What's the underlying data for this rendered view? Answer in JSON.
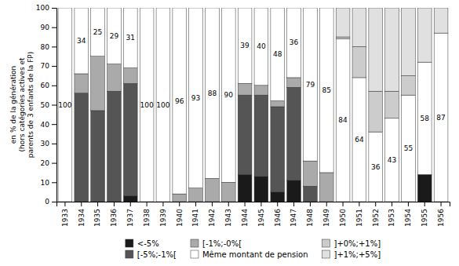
{
  "chart_data": {
    "type": "bar",
    "stacked": true,
    "grid": false,
    "legend": "bottom",
    "categories": [
      "1933",
      "1934",
      "1935",
      "1936",
      "1937",
      "1938",
      "1939",
      "1940",
      "1941",
      "1942",
      "1943",
      "1944",
      "1945",
      "1946",
      "1947",
      "1948",
      "1949",
      "1950",
      "1951",
      "1952",
      "1953",
      "1954",
      "1955",
      "1956"
    ],
    "series": [
      {
        "name": "<-5%",
        "color": "#1a1a1a",
        "values": [
          0,
          0,
          0,
          0,
          3,
          0,
          0,
          0,
          0,
          0,
          0,
          14,
          13,
          5,
          11,
          0,
          0,
          0,
          0,
          0,
          0,
          0,
          14,
          0
        ]
      },
      {
        "name": "[-5%;-1%[",
        "color": "#555555",
        "values": [
          0,
          56,
          47,
          57,
          58,
          0,
          0,
          0,
          0,
          0,
          0,
          41,
          42,
          44,
          48,
          8,
          0,
          0,
          0,
          0,
          0,
          0,
          0,
          0
        ]
      },
      {
        "name": "[-1%;-0%[",
        "color": "#aaaaaa",
        "values": [
          0,
          10,
          28,
          14,
          8,
          0,
          0,
          4,
          7,
          12,
          10,
          6,
          5,
          3,
          5,
          13,
          15,
          0,
          0,
          0,
          0,
          0,
          0,
          0
        ]
      },
      {
        "name": "Même montant de pension",
        "color": "#ffffff",
        "data_labels": true,
        "values": [
          100,
          34,
          25,
          29,
          31,
          100,
          100,
          96,
          93,
          88,
          90,
          39,
          40,
          48,
          36,
          79,
          85,
          84,
          64,
          36,
          43,
          55,
          58,
          87
        ]
      },
      {
        "name": "]+0%;+1%]",
        "color": "#cccccc",
        "values": [
          0,
          0,
          0,
          0,
          0,
          0,
          0,
          0,
          0,
          0,
          0,
          0,
          0,
          0,
          0,
          0,
          0,
          1,
          16,
          21,
          14,
          10,
          0,
          0
        ]
      },
      {
        "name": "]+1%;+5%]",
        "color": "#e0e0e0",
        "values": [
          0,
          0,
          0,
          0,
          0,
          0,
          0,
          0,
          0,
          0,
          0,
          0,
          0,
          0,
          0,
          0,
          0,
          15,
          20,
          43,
          43,
          35,
          28,
          13
        ]
      }
    ],
    "ylabel": "en % de la génération\n(hors catégories actives et\nparents de 3 enfants de la FP)",
    "ylim": [
      0,
      100
    ],
    "yticks": [
      0,
      10,
      20,
      30,
      40,
      50,
      60,
      70,
      80,
      90,
      100
    ]
  }
}
